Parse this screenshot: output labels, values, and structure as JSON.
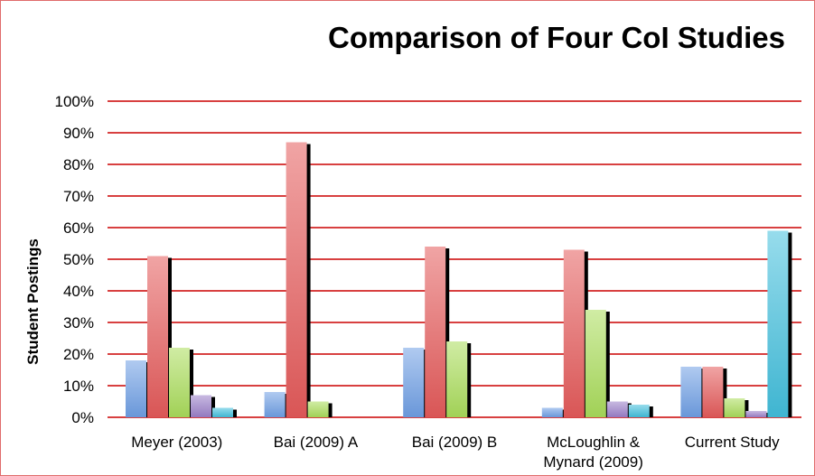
{
  "chart_data": {
    "type": "bar",
    "title": "Comparison of Four CoI Studies",
    "xlabel": "",
    "ylabel": "Student Postings",
    "ylim": [
      0,
      100
    ],
    "y_unit": "%",
    "y_ticks": [
      "0%",
      "10%",
      "20%",
      "30%",
      "40%",
      "50%",
      "60%",
      "70%",
      "80%",
      "90%",
      "100%"
    ],
    "categories": [
      [
        "Meyer (2003)"
      ],
      [
        "Bai (2009) A"
      ],
      [
        "Bai (2009) B"
      ],
      [
        "McLoughlin &",
        "Mynard (2009)"
      ],
      [
        "Current Study"
      ]
    ],
    "series": [
      {
        "values": [
          18,
          8,
          22,
          3,
          16
        ],
        "color": "#6f9fe4"
      },
      {
        "values": [
          51,
          87,
          54,
          53,
          16
        ],
        "color": "#e45a5a"
      },
      {
        "values": [
          22,
          5,
          24,
          34,
          6
        ],
        "color": "#a9dc5a"
      },
      {
        "values": [
          7,
          0,
          0,
          5,
          2
        ],
        "color": "#9b7fc9"
      },
      {
        "values": [
          3,
          0,
          0,
          4,
          59
        ],
        "color": "#42bfdc"
      }
    ],
    "grid": true,
    "grid_color": "#cc0000",
    "legend": "none"
  }
}
